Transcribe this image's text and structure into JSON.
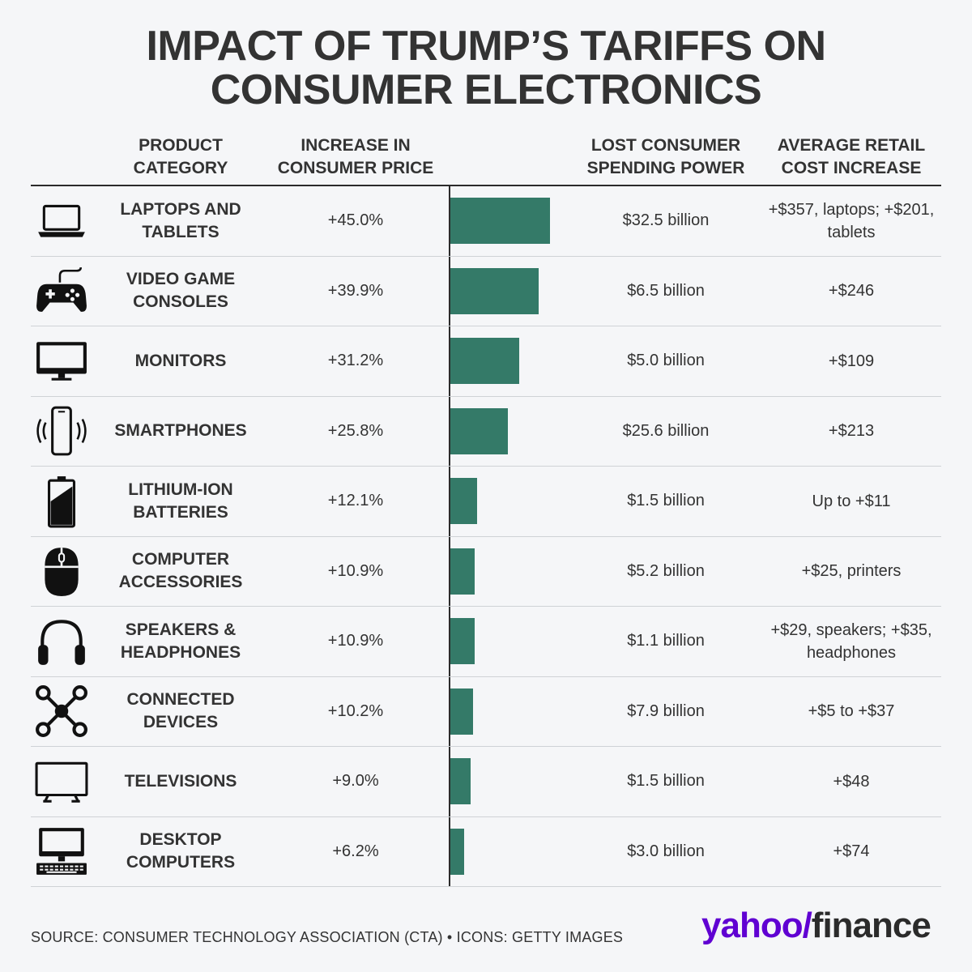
{
  "title": {
    "line1": "IMPACT OF TRUMP’S TARIFFS ON",
    "line2": "CONSUMER ELECTRONICS"
  },
  "headers": {
    "category": [
      "PRODUCT",
      "CATEGORY"
    ],
    "increase": [
      "INCREASE IN",
      "CONSUMER PRICE"
    ],
    "lost": [
      "LOST CONSUMER",
      "SPENDING POWER"
    ],
    "avg": [
      "AVERAGE RETAIL",
      "COST INCREASE"
    ]
  },
  "rows": [
    {
      "icon": "laptop-icon",
      "category": "LAPTOPS AND TABLETS",
      "increase": "+45.0%",
      "lost": "$32.5 billion",
      "avg": "+$357, laptops; +$201, tablets"
    },
    {
      "icon": "game-controller-icon",
      "category": "VIDEO GAME CONSOLES",
      "increase": "+39.9%",
      "lost": "$6.5 billion",
      "avg": "+$246"
    },
    {
      "icon": "monitor-icon",
      "category": "MONITORS",
      "increase": "+31.2%",
      "lost": "$5.0 billion",
      "avg": "+$109"
    },
    {
      "icon": "smartphone-icon",
      "category": "SMARTPHONES",
      "increase": "+25.8%",
      "lost": "$25.6 billion",
      "avg": "+$213"
    },
    {
      "icon": "battery-icon",
      "category": "LITHIUM-ION BATTERIES",
      "increase": "+12.1%",
      "lost": "$1.5 billion",
      "avg": "Up to +$11"
    },
    {
      "icon": "mouse-icon",
      "category": "COMPUTER ACCESSORIES",
      "increase": "+10.9%",
      "lost": "$5.2 billion",
      "avg": "+$25, printers"
    },
    {
      "icon": "headphones-icon",
      "category": "SPEAKERS & HEADPHONES",
      "increase": "+10.9%",
      "lost": "$1.1 billion",
      "avg": "+$29, speakers; +$35, headphones"
    },
    {
      "icon": "connected-devices-icon",
      "category": "CONNECTED DEVICES",
      "increase": "+10.2%",
      "lost": "$7.9 billion",
      "avg": "+$5 to +$37"
    },
    {
      "icon": "television-icon",
      "category": "TELEVISIONS",
      "increase": "+9.0%",
      "lost": "$1.5 billion",
      "avg": "+$48"
    },
    {
      "icon": "desktop-computer-icon",
      "category": "DESKTOP COMPUTERS",
      "increase": "+6.2%",
      "lost": "$3.0 billion",
      "avg": "+$74"
    }
  ],
  "chart_data": {
    "type": "bar",
    "categories": [
      "LAPTOPS AND TABLETS",
      "VIDEO GAME CONSOLES",
      "MONITORS",
      "SMARTPHONES",
      "LITHIUM-ION BATTERIES",
      "COMPUTER ACCESSORIES",
      "SPEAKERS & HEADPHONES",
      "CONNECTED DEVICES",
      "TELEVISIONS",
      "DESKTOP COMPUTERS"
    ],
    "values": [
      45.0,
      39.9,
      31.2,
      25.8,
      12.1,
      10.9,
      10.9,
      10.2,
      9.0,
      6.2
    ],
    "title": "IMPACT OF TRUMP’S TARIFFS ON CONSUMER ELECTRONICS",
    "xlabel": "",
    "ylabel": "INCREASE IN CONSUMER PRICE",
    "xlim": [
      0,
      73
    ],
    "bar_color": "#347a68",
    "orientation": "horizontal",
    "grid": false
  },
  "footer": {
    "source": "SOURCE: CONSUMER TECHNOLOGY ASSOCIATION (CTA) • ICONS: GETTY IMAGES",
    "logo_yahoo": "yahoo/",
    "logo_finance": "finance"
  },
  "colors": {
    "bar": "#347a68",
    "logo_purple": "#6001d2",
    "background": "#f5f6f8"
  }
}
